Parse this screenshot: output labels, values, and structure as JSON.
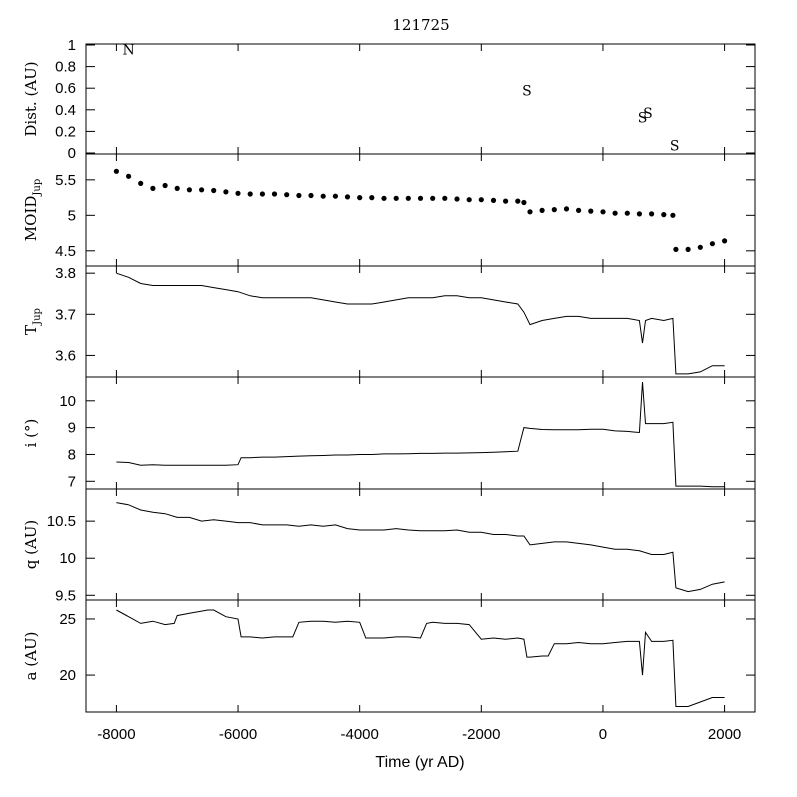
{
  "chart_data": {
    "title": "121725",
    "type": "line",
    "xlabel": "Time (yr AD)",
    "xlim": [
      -8500,
      2500
    ],
    "xticks": [
      -8000,
      -6000,
      -4000,
      -2000,
      0,
      2000
    ],
    "panels": [
      {
        "id": "dist",
        "type": "text-markers",
        "ylabel": "Dist. (AU)",
        "ylim": [
          0,
          1
        ],
        "yticks": [
          "0",
          "0.2",
          "0.4",
          "0.6",
          "0.8",
          "1"
        ],
        "yticks_values": [
          0,
          0.2,
          0.4,
          0.6,
          0.8,
          1
        ],
        "annotations": [
          {
            "text": "N",
            "x": -7800,
            "y": 0.96
          },
          {
            "text": "S",
            "x": -1250,
            "y": 0.58
          },
          {
            "text": "S",
            "x": 650,
            "y": 0.33
          },
          {
            "text": "S",
            "x": 740,
            "y": 0.37
          },
          {
            "text": "S",
            "x": 1180,
            "y": 0.07
          }
        ]
      },
      {
        "id": "moid",
        "type": "scatter",
        "ylabel": "MOID",
        "ylabel_sub": "Jup",
        "ylim": [
          4.3,
          5.85
        ],
        "yticks": [
          "4.5",
          "5",
          "5.5"
        ],
        "yticks_values": [
          4.5,
          5,
          5.5
        ],
        "x": [
          -8000,
          -7800,
          -7600,
          -7400,
          -7200,
          -7000,
          -6800,
          -6600,
          -6400,
          -6200,
          -6000,
          -5800,
          -5600,
          -5400,
          -5200,
          -5000,
          -4800,
          -4600,
          -4400,
          -4200,
          -4000,
          -3800,
          -3600,
          -3400,
          -3200,
          -3000,
          -2800,
          -2600,
          -2400,
          -2200,
          -2000,
          -1800,
          -1600,
          -1400,
          -1300,
          -1200,
          -1000,
          -800,
          -600,
          -400,
          -200,
          0,
          200,
          400,
          600,
          800,
          1000,
          1150,
          1200,
          1400,
          1600,
          1800,
          2000
        ],
        "y": [
          5.62,
          5.55,
          5.45,
          5.38,
          5.42,
          5.38,
          5.36,
          5.36,
          5.35,
          5.33,
          5.31,
          5.3,
          5.3,
          5.3,
          5.29,
          5.28,
          5.28,
          5.27,
          5.27,
          5.26,
          5.25,
          5.25,
          5.24,
          5.24,
          5.24,
          5.24,
          5.24,
          5.24,
          5.23,
          5.22,
          5.22,
          5.21,
          5.2,
          5.2,
          5.18,
          5.05,
          5.07,
          5.08,
          5.09,
          5.07,
          5.06,
          5.05,
          5.03,
          5.03,
          5.02,
          5.02,
          5.01,
          5.0,
          4.52,
          4.52,
          4.55,
          4.6,
          4.64
        ]
      },
      {
        "id": "tjup",
        "type": "line",
        "ylabel": "T",
        "ylabel_sub": "Jup",
        "ylim": [
          3.55,
          3.815
        ],
        "yticks": [
          "3.6",
          "3.7",
          "3.8"
        ],
        "yticks_values": [
          3.6,
          3.7,
          3.8
        ],
        "x": [
          -8000,
          -7800,
          -7600,
          -7400,
          -7200,
          -7000,
          -6800,
          -6600,
          -6400,
          -6200,
          -6000,
          -5800,
          -5600,
          -5400,
          -5200,
          -5000,
          -4800,
          -4600,
          -4400,
          -4200,
          -4000,
          -3800,
          -3600,
          -3400,
          -3200,
          -3000,
          -2800,
          -2600,
          -2400,
          -2200,
          -2000,
          -1800,
          -1600,
          -1400,
          -1300,
          -1200,
          -1000,
          -800,
          -600,
          -400,
          -200,
          0,
          200,
          400,
          600,
          650,
          700,
          800,
          1000,
          1150,
          1200,
          1400,
          1600,
          1800,
          2000
        ],
        "y": [
          3.8,
          3.79,
          3.775,
          3.77,
          3.77,
          3.77,
          3.77,
          3.77,
          3.765,
          3.76,
          3.755,
          3.745,
          3.74,
          3.74,
          3.74,
          3.74,
          3.74,
          3.735,
          3.73,
          3.725,
          3.725,
          3.725,
          3.73,
          3.735,
          3.74,
          3.74,
          3.74,
          3.745,
          3.745,
          3.74,
          3.74,
          3.735,
          3.73,
          3.725,
          3.705,
          3.675,
          3.685,
          3.69,
          3.695,
          3.695,
          3.69,
          3.69,
          3.69,
          3.69,
          3.685,
          3.63,
          3.685,
          3.69,
          3.685,
          3.69,
          3.555,
          3.555,
          3.56,
          3.575,
          3.575
        ]
      },
      {
        "id": "incl",
        "type": "line",
        "ylabel": "i (°)",
        "ylim": [
          6.75,
          10.85
        ],
        "yticks": [
          "7",
          "8",
          "9",
          "10"
        ],
        "yticks_values": [
          7,
          8,
          9,
          10
        ],
        "x": [
          -8000,
          -7800,
          -7600,
          -7400,
          -7200,
          -7000,
          -6800,
          -6600,
          -6400,
          -6200,
          -6000,
          -5950,
          -5800,
          -5600,
          -5400,
          -5200,
          -5000,
          -4800,
          -4600,
          -4400,
          -4200,
          -4000,
          -3800,
          -3600,
          -3400,
          -3200,
          -3000,
          -2800,
          -2600,
          -2400,
          -2200,
          -2000,
          -1800,
          -1600,
          -1400,
          -1300,
          -1200,
          -1000,
          -800,
          -600,
          -400,
          -200,
          0,
          200,
          400,
          600,
          650,
          700,
          800,
          1000,
          1150,
          1200,
          1400,
          1600,
          1800,
          2000
        ],
        "y": [
          7.72,
          7.7,
          7.6,
          7.62,
          7.6,
          7.6,
          7.6,
          7.6,
          7.6,
          7.6,
          7.62,
          7.88,
          7.88,
          7.9,
          7.9,
          7.92,
          7.94,
          7.95,
          7.96,
          7.98,
          7.98,
          8.0,
          8.0,
          8.02,
          8.02,
          8.03,
          8.04,
          8.04,
          8.05,
          8.05,
          8.06,
          8.07,
          8.08,
          8.1,
          8.12,
          9.0,
          8.97,
          8.93,
          8.92,
          8.92,
          8.92,
          8.94,
          8.94,
          8.88,
          8.86,
          8.82,
          10.7,
          9.15,
          9.15,
          9.15,
          9.2,
          6.82,
          6.82,
          6.82,
          6.8,
          6.8
        ]
      },
      {
        "id": "q",
        "type": "line",
        "ylabel": "q (AU)",
        "ylim": [
          9.45,
          10.92
        ],
        "yticks": [
          "9.5",
          "10",
          "10.5"
        ],
        "yticks_values": [
          9.5,
          10,
          10.5
        ],
        "x": [
          -8000,
          -7800,
          -7600,
          -7400,
          -7200,
          -7000,
          -6800,
          -6600,
          -6400,
          -6200,
          -6000,
          -5800,
          -5600,
          -5400,
          -5200,
          -5000,
          -4800,
          -4600,
          -4400,
          -4200,
          -4000,
          -3800,
          -3600,
          -3400,
          -3200,
          -3000,
          -2800,
          -2600,
          -2400,
          -2200,
          -2000,
          -1800,
          -1600,
          -1400,
          -1300,
          -1200,
          -1000,
          -800,
          -600,
          -400,
          -200,
          0,
          200,
          400,
          600,
          800,
          1000,
          1150,
          1200,
          1400,
          1600,
          1800,
          2000
        ],
        "y": [
          10.75,
          10.72,
          10.65,
          10.62,
          10.6,
          10.55,
          10.55,
          10.5,
          10.52,
          10.5,
          10.48,
          10.48,
          10.45,
          10.45,
          10.45,
          10.43,
          10.45,
          10.43,
          10.45,
          10.4,
          10.38,
          10.38,
          10.38,
          10.4,
          10.38,
          10.37,
          10.37,
          10.37,
          10.38,
          10.35,
          10.35,
          10.32,
          10.32,
          10.3,
          10.3,
          10.18,
          10.2,
          10.22,
          10.22,
          10.2,
          10.18,
          10.15,
          10.12,
          10.12,
          10.1,
          10.05,
          10.05,
          10.08,
          9.6,
          9.55,
          9.58,
          9.65,
          9.68
        ]
      },
      {
        "id": "a",
        "type": "line",
        "ylabel": "a (AU)",
        "ylim": [
          16.8,
          26.6
        ],
        "yticks": [
          "20",
          "25"
        ],
        "yticks_values": [
          20,
          25
        ],
        "x": [
          -8000,
          -7800,
          -7600,
          -7400,
          -7200,
          -7050,
          -7000,
          -6800,
          -6600,
          -6500,
          -6400,
          -6200,
          -6000,
          -5950,
          -5800,
          -5600,
          -5400,
          -5200,
          -5100,
          -5000,
          -4800,
          -4600,
          -4400,
          -4200,
          -4000,
          -3900,
          -3800,
          -3600,
          -3400,
          -3200,
          -3000,
          -2900,
          -2800,
          -2600,
          -2400,
          -2200,
          -2000,
          -1800,
          -1600,
          -1400,
          -1300,
          -1250,
          -1200,
          -1000,
          -900,
          -800,
          -600,
          -400,
          -200,
          0,
          200,
          400,
          600,
          650,
          700,
          800,
          1000,
          1150,
          1200,
          1400,
          1600,
          1800,
          2000
        ],
        "y": [
          25.8,
          25.2,
          24.6,
          24.8,
          24.5,
          24.6,
          25.3,
          25.5,
          25.7,
          25.8,
          25.8,
          25.2,
          25.0,
          23.4,
          23.4,
          23.3,
          23.4,
          23.4,
          23.4,
          24.7,
          24.8,
          24.8,
          24.7,
          24.8,
          24.7,
          23.3,
          23.3,
          23.3,
          23.4,
          23.4,
          23.3,
          24.6,
          24.7,
          24.6,
          24.6,
          24.5,
          23.2,
          23.3,
          23.2,
          23.3,
          23.2,
          21.6,
          21.6,
          21.7,
          21.7,
          22.8,
          22.8,
          22.9,
          22.8,
          22.8,
          22.9,
          23.0,
          23.0,
          20.0,
          23.8,
          23.0,
          23.0,
          23.1,
          17.2,
          17.2,
          17.6,
          18.0,
          18.0
        ]
      }
    ]
  }
}
